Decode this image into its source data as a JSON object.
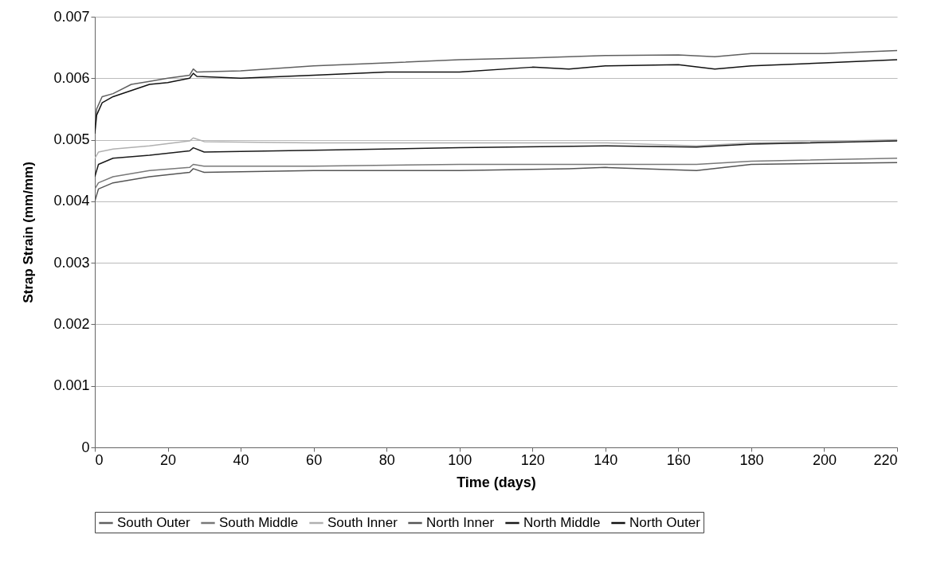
{
  "chart_data": {
    "type": "line",
    "xlabel": "Time (days)",
    "ylabel": "Strap Strain (mm/mm)",
    "xlim": [
      0,
      220
    ],
    "xticks": [
      0,
      20,
      40,
      60,
      80,
      100,
      120,
      140,
      160,
      180,
      200,
      220
    ],
    "ylim": [
      0,
      0.007
    ],
    "yticks": [
      0,
      0.001,
      0.002,
      0.003,
      0.004,
      0.005,
      0.006,
      0.007
    ],
    "grid": "y",
    "legend": "bottom",
    "marker": "none",
    "line_style": "solid",
    "series": [
      {
        "name": "South Outer",
        "color": "#606060",
        "x": [
          0,
          0.5,
          2,
          5,
          10,
          15,
          20,
          26,
          27,
          28,
          40,
          60,
          80,
          100,
          120,
          140,
          160,
          170,
          180,
          200,
          220
        ],
        "values": [
          0.0052,
          0.0055,
          0.0057,
          0.00575,
          0.0059,
          0.00595,
          0.006,
          0.00605,
          0.00615,
          0.0061,
          0.00612,
          0.0062,
          0.00625,
          0.0063,
          0.00633,
          0.00637,
          0.00638,
          0.00635,
          0.0064,
          0.0064,
          0.00645
        ]
      },
      {
        "name": "South Middle",
        "color": "#787878",
        "x": [
          0,
          1,
          5,
          15,
          26,
          27,
          30,
          60,
          100,
          140,
          165,
          180,
          220
        ],
        "values": [
          0.0042,
          0.0043,
          0.0044,
          0.0045,
          0.00455,
          0.0046,
          0.00457,
          0.00457,
          0.0046,
          0.0046,
          0.0046,
          0.00465,
          0.0047
        ]
      },
      {
        "name": "South Inner",
        "color": "#b0b0b0",
        "x": [
          0,
          1,
          5,
          15,
          26,
          27,
          30,
          60,
          100,
          140,
          165,
          180,
          220
        ],
        "values": [
          0.0047,
          0.0048,
          0.00485,
          0.0049,
          0.00498,
          0.00503,
          0.00497,
          0.00495,
          0.00495,
          0.00495,
          0.0049,
          0.00495,
          0.005
        ]
      },
      {
        "name": "North Inner",
        "color": "#555555",
        "x": [
          0,
          1,
          5,
          15,
          26,
          27,
          30,
          60,
          100,
          130,
          140,
          165,
          180,
          220
        ],
        "values": [
          0.004,
          0.0042,
          0.0043,
          0.0044,
          0.00447,
          0.00453,
          0.00447,
          0.0045,
          0.0045,
          0.00453,
          0.00455,
          0.0045,
          0.0046,
          0.00463
        ]
      },
      {
        "name": "North Middle",
        "color": "#1a1a1a",
        "x": [
          0,
          1,
          5,
          15,
          26,
          27,
          30,
          60,
          100,
          140,
          165,
          180,
          220
        ],
        "values": [
          0.0044,
          0.0046,
          0.0047,
          0.00475,
          0.00482,
          0.00487,
          0.0048,
          0.00483,
          0.00487,
          0.0049,
          0.00488,
          0.00493,
          0.00498
        ]
      },
      {
        "name": "North Outer",
        "color": "#111111",
        "x": [
          0,
          0.5,
          2,
          5,
          10,
          15,
          20,
          26,
          27,
          28,
          40,
          60,
          80,
          100,
          120,
          130,
          140,
          160,
          170,
          180,
          200,
          220
        ],
        "values": [
          0.0051,
          0.0054,
          0.0056,
          0.0057,
          0.0058,
          0.0059,
          0.00593,
          0.006,
          0.00608,
          0.00603,
          0.006,
          0.00605,
          0.0061,
          0.0061,
          0.00618,
          0.00615,
          0.0062,
          0.00622,
          0.00615,
          0.0062,
          0.00625,
          0.0063
        ]
      }
    ]
  }
}
